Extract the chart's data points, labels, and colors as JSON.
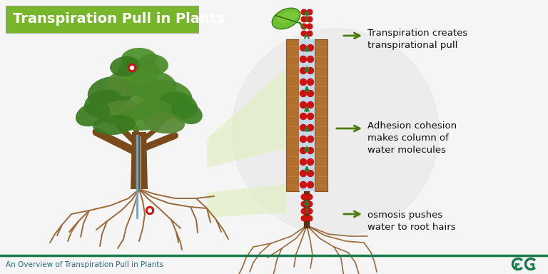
{
  "bg_color": "#f5f5f5",
  "title_text": "Transpiration Pull in Plants",
  "title_bg": "#77b52a",
  "title_color": "#ffffff",
  "footer_text": "An Overview of Transpiration Pull in Plants",
  "footer_line_color": "#1a7a4a",
  "annotation1": "Transpiration creates\ntranspirational pull",
  "annotation2": "Adhesion cohesion\nmakes column of\nwater molecules",
  "annotation3": "osmosis pushes\nwater to root hairs",
  "arrow_color": "#4a7a10",
  "dot_color": "#cc1111",
  "xylem_wall_color": "#b07030",
  "xylem_wall_dark": "#8a5018",
  "xylem_inner_color": "#c5d8e8",
  "up_arrow_color": "#2a7a2a",
  "circle_bg_color": "#e0e0e0",
  "tree_trunk_color": "#7a4a1a",
  "tree_green1": "#3a7a20",
  "tree_green2": "#4a8a28",
  "tree_green3": "#558830",
  "root_color": "#9a6a3a",
  "water_blue": "#55aadd",
  "gfg_color": "#1a7a4a",
  "footer_text_color": "#2a6a7a"
}
